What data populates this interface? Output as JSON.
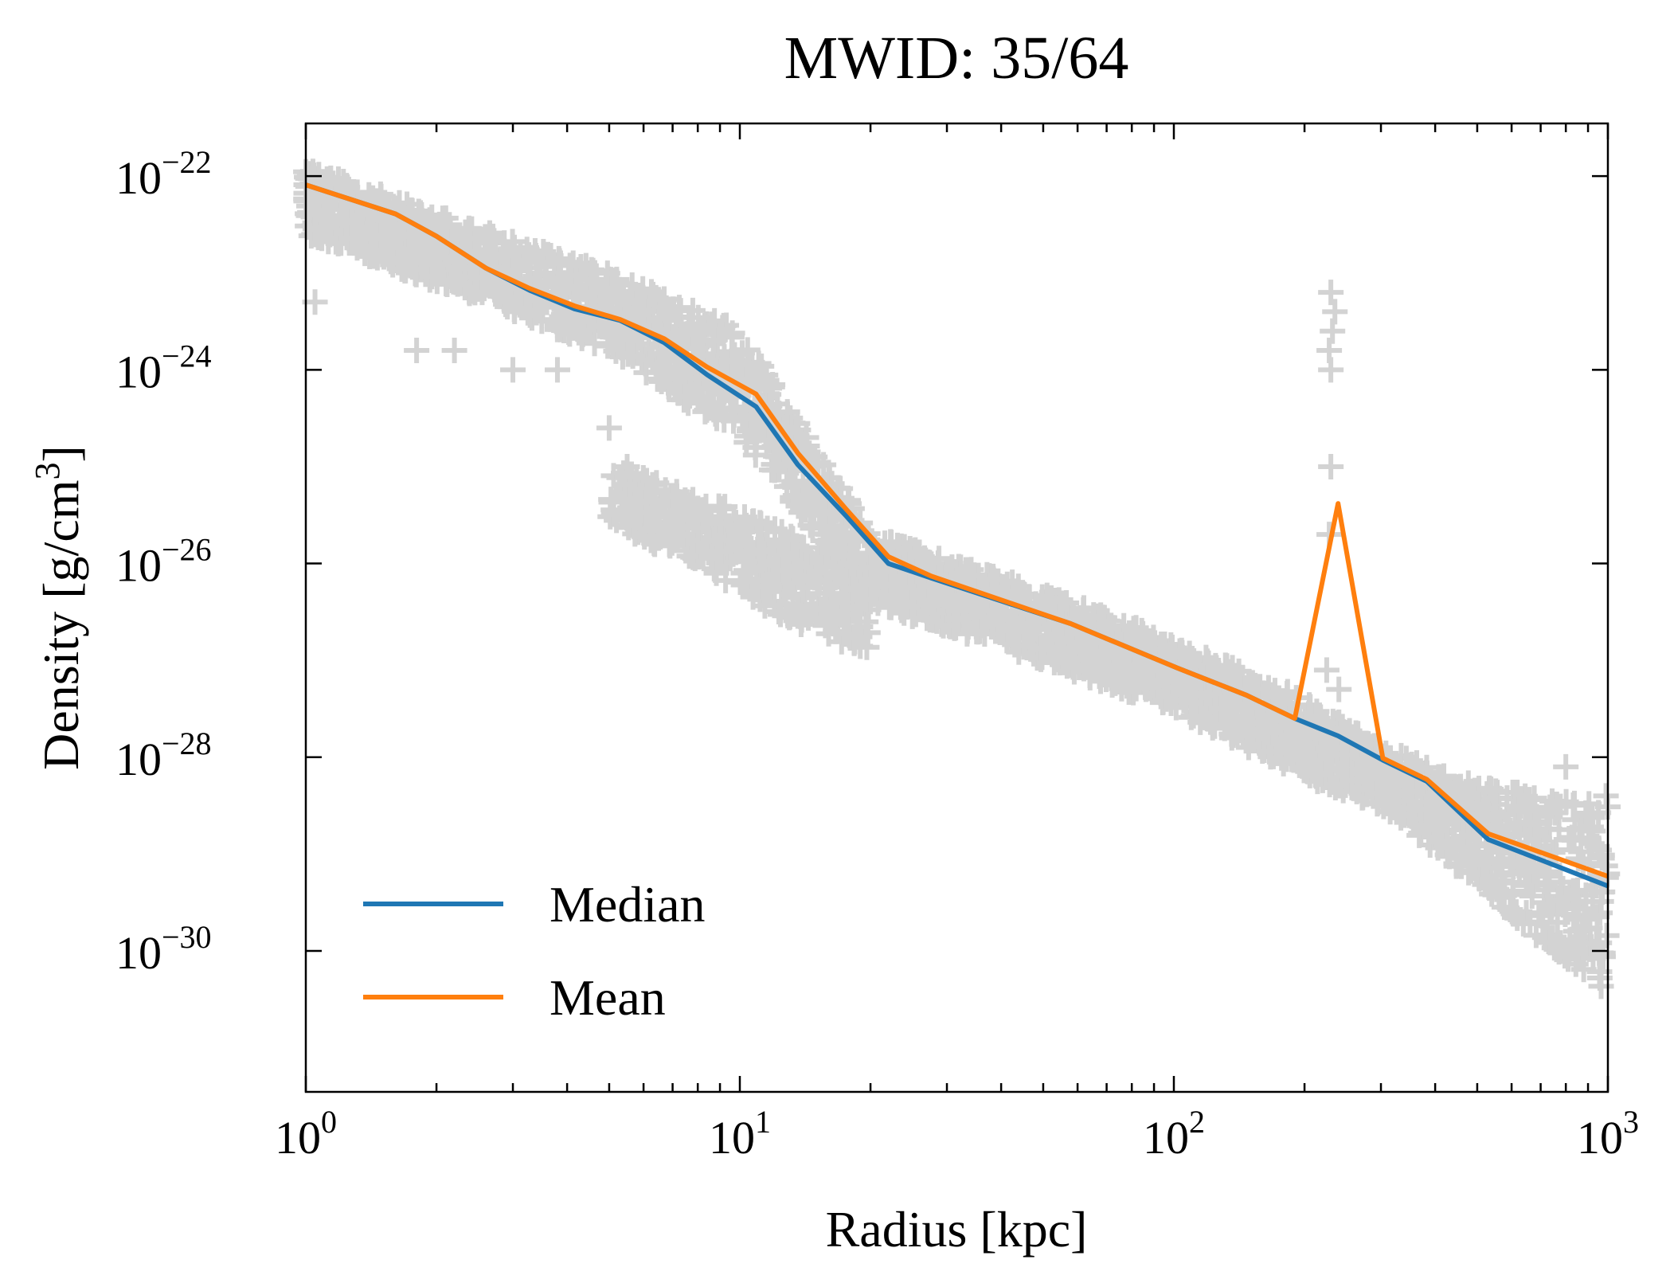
{
  "chart_data": {
    "type": "line",
    "title": "MWID: 35/64",
    "xlabel": "Radius [kpc]",
    "ylabel": "Density [g/cm³]",
    "ylabel_parts": {
      "main": "Density [g/cm",
      "sup": "3",
      "close": "]"
    },
    "xscale": "log",
    "yscale": "log",
    "xlim": [
      1,
      1000
    ],
    "ylim": [
      3.5e-32,
      3.5e-22
    ],
    "grid": false,
    "legend_position": "lower-left",
    "x_ticks": [
      {
        "base": "10",
        "exp": "0",
        "value": 1
      },
      {
        "base": "10",
        "exp": "1",
        "value": 10
      },
      {
        "base": "10",
        "exp": "2",
        "value": 100
      },
      {
        "base": "10",
        "exp": "3",
        "value": 1000
      }
    ],
    "y_ticks": [
      {
        "base": "10",
        "exp": "−22",
        "value": -22
      },
      {
        "base": "10",
        "exp": "−24",
        "value": -24
      },
      {
        "base": "10",
        "exp": "−26",
        "value": -26
      },
      {
        "base": "10",
        "exp": "−28",
        "value": -28
      },
      {
        "base": "10",
        "exp": "−30",
        "value": -30
      }
    ],
    "series": [
      {
        "name": "Median",
        "color": "#1f77b4",
        "x": [
          1,
          1.61,
          2.0,
          2.6,
          3.28,
          4.16,
          5.3,
          6.7,
          8.4,
          10.9,
          13.6,
          17.5,
          22,
          27.6,
          57.8,
          102,
          147,
          190,
          239,
          303,
          383,
          530,
          1000
        ],
        "log10_y": [
          -22.09,
          -22.39,
          -22.62,
          -22.95,
          -23.18,
          -23.37,
          -23.49,
          -23.72,
          -24.05,
          -24.38,
          -24.98,
          -25.5,
          -26.0,
          -26.15,
          -26.62,
          -27.08,
          -27.36,
          -27.6,
          -27.78,
          -28.03,
          -28.25,
          -28.85,
          -29.33
        ]
      },
      {
        "name": "Mean",
        "color": "#ff7f0e",
        "x": [
          1,
          1.61,
          2.0,
          2.6,
          3.28,
          4.16,
          5.3,
          6.7,
          8.4,
          10.9,
          13.6,
          17.5,
          22,
          27.6,
          57.8,
          102,
          147,
          190,
          239,
          303,
          383,
          530,
          1000
        ],
        "log10_y": [
          -22.09,
          -22.39,
          -22.62,
          -22.95,
          -23.16,
          -23.34,
          -23.48,
          -23.68,
          -23.97,
          -24.25,
          -24.86,
          -25.43,
          -25.93,
          -26.13,
          -26.62,
          -27.08,
          -27.36,
          -27.6,
          -25.38,
          -28.01,
          -28.23,
          -28.79,
          -29.23
        ]
      }
    ],
    "scatter": {
      "color": "#d3d3d3",
      "marker": "+",
      "band_x": [
        1,
        2,
        5,
        10,
        20,
        50,
        100,
        200,
        300,
        500,
        1000
      ],
      "band_log10_upper": [
        -21.9,
        -22.4,
        -23.0,
        -23.6,
        -25.7,
        -26.3,
        -26.8,
        -27.4,
        -27.9,
        -28.3,
        -28.5
      ],
      "band_log10_lower": [
        -22.6,
        -23.1,
        -23.8,
        -24.7,
        -26.4,
        -27.0,
        -27.5,
        -28.2,
        -28.5,
        -29.3,
        -30.5
      ],
      "branch_x": [
        5,
        8,
        12,
        20
      ],
      "branch_log10_upper": [
        -25.0,
        -25.3,
        -25.6,
        -26.2
      ],
      "branch_log10_lower": [
        -25.6,
        -26.0,
        -26.5,
        -27.0
      ],
      "outliers": [
        {
          "x": 1.05,
          "log10_y": -23.3
        },
        {
          "x": 1.8,
          "log10_y": -23.8
        },
        {
          "x": 2.2,
          "log10_y": -23.8
        },
        {
          "x": 3.0,
          "log10_y": -24.0
        },
        {
          "x": 3.8,
          "log10_y": -24.0
        },
        {
          "x": 5.0,
          "log10_y": -24.6
        },
        {
          "x": 5.5,
          "log10_y": -25.0
        },
        {
          "x": 7.0,
          "log10_y": -25.3
        },
        {
          "x": 230,
          "log10_y": -23.2
        },
        {
          "x": 235,
          "log10_y": -23.4
        },
        {
          "x": 232,
          "log10_y": -23.6
        },
        {
          "x": 228,
          "log10_y": -23.8
        },
        {
          "x": 230,
          "log10_y": -24.0
        },
        {
          "x": 230,
          "log10_y": -25.0
        },
        {
          "x": 228,
          "log10_y": -25.7
        },
        {
          "x": 225,
          "log10_y": -27.1
        },
        {
          "x": 240,
          "log10_y": -27.3
        },
        {
          "x": 800,
          "log10_y": -28.1
        },
        {
          "x": 990,
          "log10_y": -28.4
        }
      ]
    }
  }
}
